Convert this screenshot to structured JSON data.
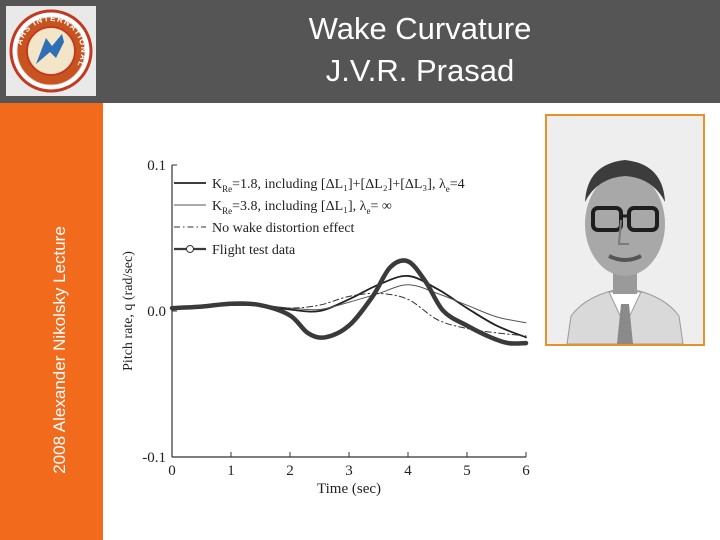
{
  "slide": {
    "title_line1": "Wake Curvature",
    "title_line2": "J.V.R. Prasad",
    "sidebar_text": "2008 Alexander Nikolsky Lecture",
    "logo_text": "AHS INTERNATIONAL"
  },
  "colors": {
    "topbar": "#555555",
    "sidebar": "#f26a1b",
    "photo_border": "#e8922a"
  },
  "chart_data": {
    "type": "line",
    "title": "",
    "xlabel": "Time (sec)",
    "ylabel": "Pitch rate, q (rad/sec)",
    "xlim": [
      0,
      6
    ],
    "ylim": [
      -0.1,
      0.1
    ],
    "x_ticks": [
      "0",
      "1",
      "2",
      "3",
      "4",
      "5",
      "6"
    ],
    "y_ticks": [
      {
        "value": 0.1,
        "label": "0.1"
      },
      {
        "value": 0.0,
        "label": "0.0"
      },
      {
        "value": -0.1,
        "label": "-0.1"
      }
    ],
    "grid": false,
    "legend_position": "top-left",
    "legend": [
      {
        "prefix": "K",
        "sub": "Re",
        "text": "=1.8, including [ΔL₁]+[ΔL₂]+[ΔL₃], λ",
        "lsub": "e",
        "suffix": "=4"
      },
      {
        "prefix": "K",
        "sub": "Re",
        "text": "=3.8, including [ΔL₁], λ",
        "lsub": "e",
        "suffix": "= ∞"
      },
      {
        "prefix": "",
        "sub": "",
        "text": "No wake distortion effect",
        "lsub": "",
        "suffix": ""
      },
      {
        "prefix": "",
        "sub": "",
        "text": "Flight test data",
        "lsub": "",
        "suffix": ""
      }
    ],
    "series": [
      {
        "style": "solid",
        "color": "#222222",
        "width": 1.8,
        "dash": "",
        "x": [
          0,
          0.5,
          1,
          1.5,
          2,
          2.5,
          3,
          3.5,
          4,
          4.5,
          5,
          5.5,
          6
        ],
        "y": [
          0.002,
          0.003,
          0.004,
          0.004,
          0.001,
          0.0,
          0.008,
          0.018,
          0.024,
          0.015,
          0.002,
          -0.01,
          -0.018
        ]
      },
      {
        "style": "solid-thin",
        "color": "#555555",
        "width": 1.0,
        "dash": "",
        "x": [
          0,
          0.5,
          1,
          1.5,
          2,
          2.5,
          3,
          3.5,
          4,
          4.5,
          5,
          5.5,
          6
        ],
        "y": [
          0.002,
          0.003,
          0.004,
          0.004,
          0.002,
          0.001,
          0.006,
          0.012,
          0.018,
          0.012,
          0.004,
          -0.004,
          -0.008
        ]
      },
      {
        "style": "dash-dot",
        "color": "#333333",
        "width": 1.0,
        "dash": "6,3,1.5,3",
        "x": [
          0,
          0.5,
          1,
          1.5,
          2,
          2.5,
          3,
          3.5,
          4,
          4.5,
          5,
          5.5,
          6
        ],
        "y": [
          0.002,
          0.003,
          0.004,
          0.004,
          0.002,
          0.004,
          0.01,
          0.012,
          0.008,
          -0.006,
          -0.012,
          -0.015,
          -0.017
        ]
      },
      {
        "style": "flight-test",
        "color": "#3a3a3a",
        "width": 4.5,
        "dash": "",
        "x": [
          0,
          0.5,
          1,
          1.5,
          2,
          2.3,
          2.6,
          3,
          3.4,
          3.7,
          4,
          4.3,
          4.6,
          5,
          5.4,
          5.7,
          6
        ],
        "y": [
          0.002,
          0.003,
          0.005,
          0.004,
          -0.003,
          -0.015,
          -0.018,
          -0.01,
          0.01,
          0.03,
          0.034,
          0.02,
          0.0,
          -0.01,
          -0.018,
          -0.022,
          -0.022
        ]
      }
    ]
  }
}
